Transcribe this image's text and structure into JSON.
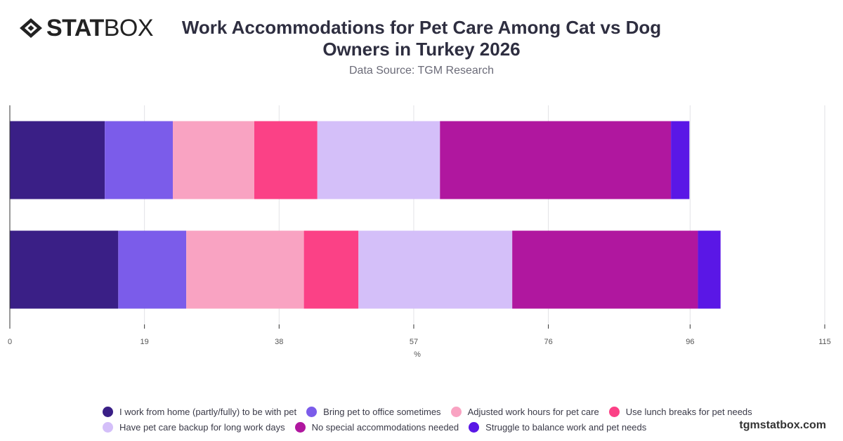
{
  "header": {
    "logo_bold": "STAT",
    "logo_light": "BOX",
    "title": "Work Accommodations for Pet Care Among Cat vs Dog Owners in Turkey 2026",
    "subtitle": "Data Source: TGM Research"
  },
  "footer": {
    "url": "tgmstatbox.com"
  },
  "chart_data": {
    "type": "bar",
    "orientation": "horizontal",
    "stacked": true,
    "title": "Work Accommodations for Pet Care Among Cat vs Dog Owners in Turkey 2026",
    "xlabel": "%",
    "ylabel": "",
    "xlim": [
      0,
      115
    ],
    "x_ticks": [
      0,
      19,
      38,
      57,
      76,
      96,
      115
    ],
    "grid": true,
    "legend_position": "bottom",
    "categories": [
      "",
      ""
    ],
    "series": [
      {
        "name": "I work from home (partly/fully) to be with pet",
        "color": "#3a1f86",
        "values": [
          13.4,
          15.3
        ]
      },
      {
        "name": "Bring pet to office sometimes",
        "color": "#7b5cea",
        "values": [
          9.6,
          9.6
        ]
      },
      {
        "name": "Adjusted work hours for pet care",
        "color": "#f9a3c2",
        "values": [
          11.5,
          16.6
        ]
      },
      {
        "name": "Use lunch breaks for pet needs",
        "color": "#fb4186",
        "values": [
          8.9,
          7.7
        ]
      },
      {
        "name": "Have pet care backup for long work days",
        "color": "#d4bff9",
        "values": [
          17.3,
          21.7
        ]
      },
      {
        "name": "No special accommodations needed",
        "color": "#b0179f",
        "values": [
          32.6,
          26.2
        ]
      },
      {
        "name": "Struggle to balance work and pet needs",
        "color": "#5a17e6",
        "values": [
          2.6,
          3.2
        ]
      }
    ]
  }
}
